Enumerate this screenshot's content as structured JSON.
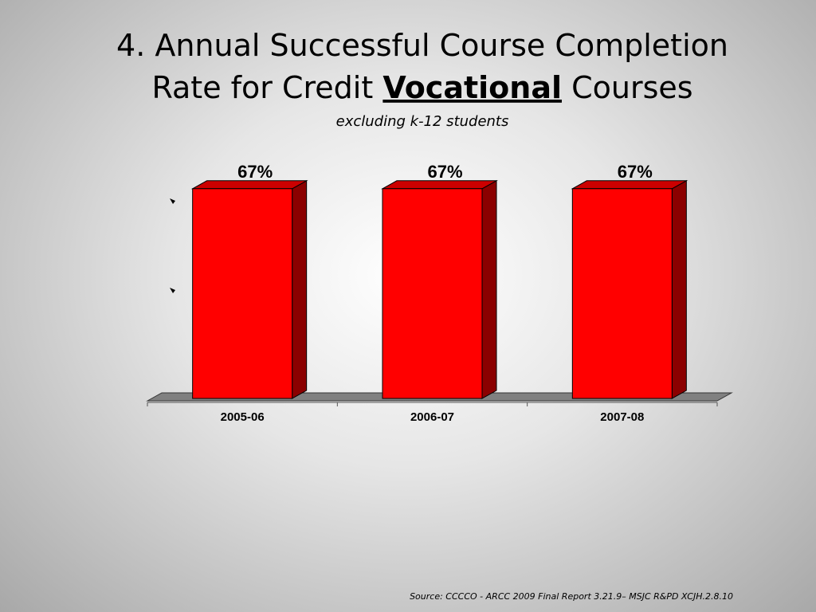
{
  "chart_data": {
    "type": "bar3d",
    "title_parts": [
      "4. Annual Successful Course Completion",
      "Rate for Credit",
      "Vocational",
      "Courses"
    ],
    "subtitle": "excluding k-12 students",
    "categories": [
      "2005-06",
      "2006-07",
      "2007-08"
    ],
    "values": [
      67,
      67,
      67
    ],
    "value_labels": [
      "67%",
      "67%",
      "67%"
    ],
    "color": "#ff0000",
    "ylim": [
      0,
      70
    ],
    "source": "Source: CCCCO - ARCC 2009 Final Report 3.21.9– MSJC R&PD XCJH.2.8.10"
  }
}
